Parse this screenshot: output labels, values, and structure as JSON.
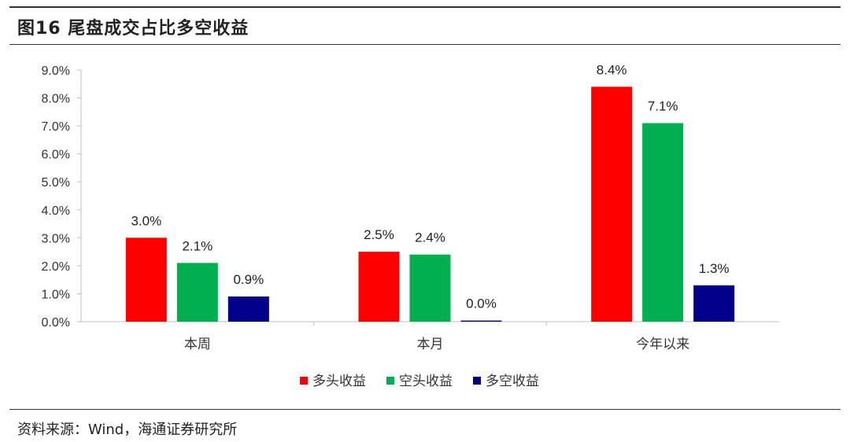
{
  "header": {
    "title": "图16 尾盘成交占比多空收益"
  },
  "footer": {
    "source": "资料来源：Wind，海通证券研究所"
  },
  "chart_data": {
    "type": "bar",
    "categories": [
      "本周",
      "本月",
      "今年以来"
    ],
    "series": [
      {
        "name": "多头收益",
        "color": "#ff0000",
        "values": [
          3.0,
          2.5,
          8.4
        ],
        "labels": [
          "3.0%",
          "2.5%",
          "8.4%"
        ]
      },
      {
        "name": "空头收益",
        "color": "#00b050",
        "values": [
          2.1,
          2.4,
          7.1
        ],
        "labels": [
          "2.1%",
          "2.4%",
          "7.1%"
        ]
      },
      {
        "name": "多空收益",
        "color": "#00008b",
        "values": [
          0.9,
          0.04,
          1.3
        ],
        "labels": [
          "0.9%",
          "0.0%",
          "1.3%"
        ]
      }
    ],
    "yticks": [
      0,
      1,
      2,
      3,
      4,
      5,
      6,
      7,
      8,
      9
    ],
    "ytick_labels": [
      "0.0%",
      "1.0%",
      "2.0%",
      "3.0%",
      "4.0%",
      "5.0%",
      "6.0%",
      "7.0%",
      "8.0%",
      "9.0%"
    ],
    "ylim": [
      0,
      9
    ],
    "legend_position": "bottom",
    "grid": false
  }
}
